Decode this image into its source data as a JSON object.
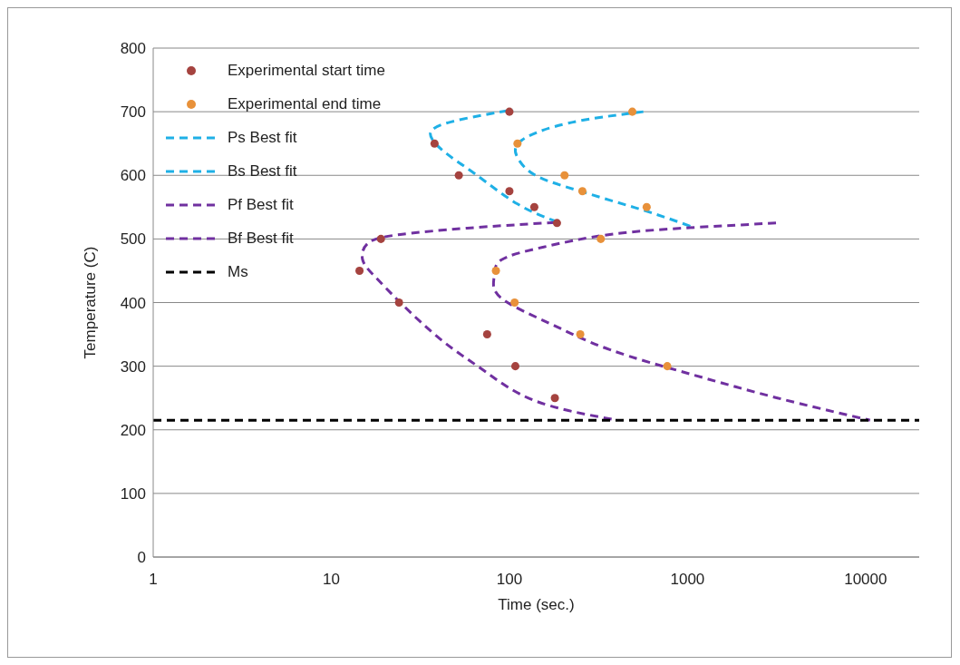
{
  "chart_data": {
    "type": "scatter",
    "xlabel": "Time (sec.)",
    "ylabel": "Temperature (C)",
    "log": "x",
    "xlim": [
      1,
      20000
    ],
    "xticks": [
      1,
      10,
      100,
      1000,
      10000
    ],
    "ylim": [
      0,
      800
    ],
    "yticks": [
      0,
      100,
      200,
      300,
      400,
      500,
      600,
      700,
      800
    ],
    "grid": "y",
    "legend": "top left",
    "series": [
      {
        "name": "Experimental start time",
        "marker": "circle",
        "color": "#a5433f",
        "x": [
          100,
          38,
          52,
          100,
          138,
          185,
          19,
          14.4,
          24,
          75,
          108,
          180
        ],
        "values": [
          700,
          650,
          600,
          575,
          550,
          525,
          500,
          450,
          400,
          350,
          300,
          250
        ]
      },
      {
        "name": "Experimental end time",
        "marker": "circle",
        "color": "#e8913a",
        "x": [
          490,
          111,
          204,
          257,
          590,
          326,
          84,
          107,
          250,
          770
        ],
        "values": [
          700,
          650,
          600,
          575,
          550,
          500,
          450,
          400,
          350,
          300
        ]
      },
      {
        "name": "Ps Best fit",
        "type": "line",
        "marker": "none",
        "line_style": "dashed",
        "color": "#1fb0e6",
        "x": [
          185,
          111,
          65,
          44,
          36,
          47,
          72,
          105
        ],
        "values": [
          527,
          555,
          601,
          635,
          666,
          684,
          695,
          703
        ]
      },
      {
        "name": "Bs Best fit",
        "type": "line",
        "marker": "none",
        "line_style": "dashed",
        "color": "#1fb0e6",
        "x": [
          565,
          214,
          117,
          111,
          138,
          213,
          366,
          630,
          1087
        ],
        "values": [
          700,
          682,
          655,
          628,
          601,
          581,
          561,
          541,
          518
        ]
      },
      {
        "name": "Pf Best fit",
        "type": "line",
        "marker": "none",
        "line_style": "dashed",
        "color": "#7030a0",
        "x": [
          181,
          58,
          24.4,
          16.2,
          15,
          17.7,
          24.4,
          42,
          72,
          138,
          386
        ],
        "values": [
          526,
          517,
          507,
          494,
          467,
          440,
          400,
          340,
          293,
          246,
          216
        ]
      },
      {
        "name": "Bf Best fit",
        "type": "line",
        "marker": "none",
        "line_style": "dashed",
        "color": "#7030a0",
        "x": [
          3140,
          1087,
          366,
          154,
          90,
          82,
          90,
          172,
          366,
          1087,
          3200,
          10600
        ],
        "values": [
          525,
          518,
          507,
          487,
          467,
          440,
          407,
          366,
          326,
          286,
          250,
          215
        ]
      },
      {
        "name": "Ms",
        "type": "line",
        "marker": "none",
        "line_style": "dashed",
        "color": "#000000",
        "x": [
          1,
          20000
        ],
        "values": [
          215,
          215
        ]
      }
    ]
  }
}
